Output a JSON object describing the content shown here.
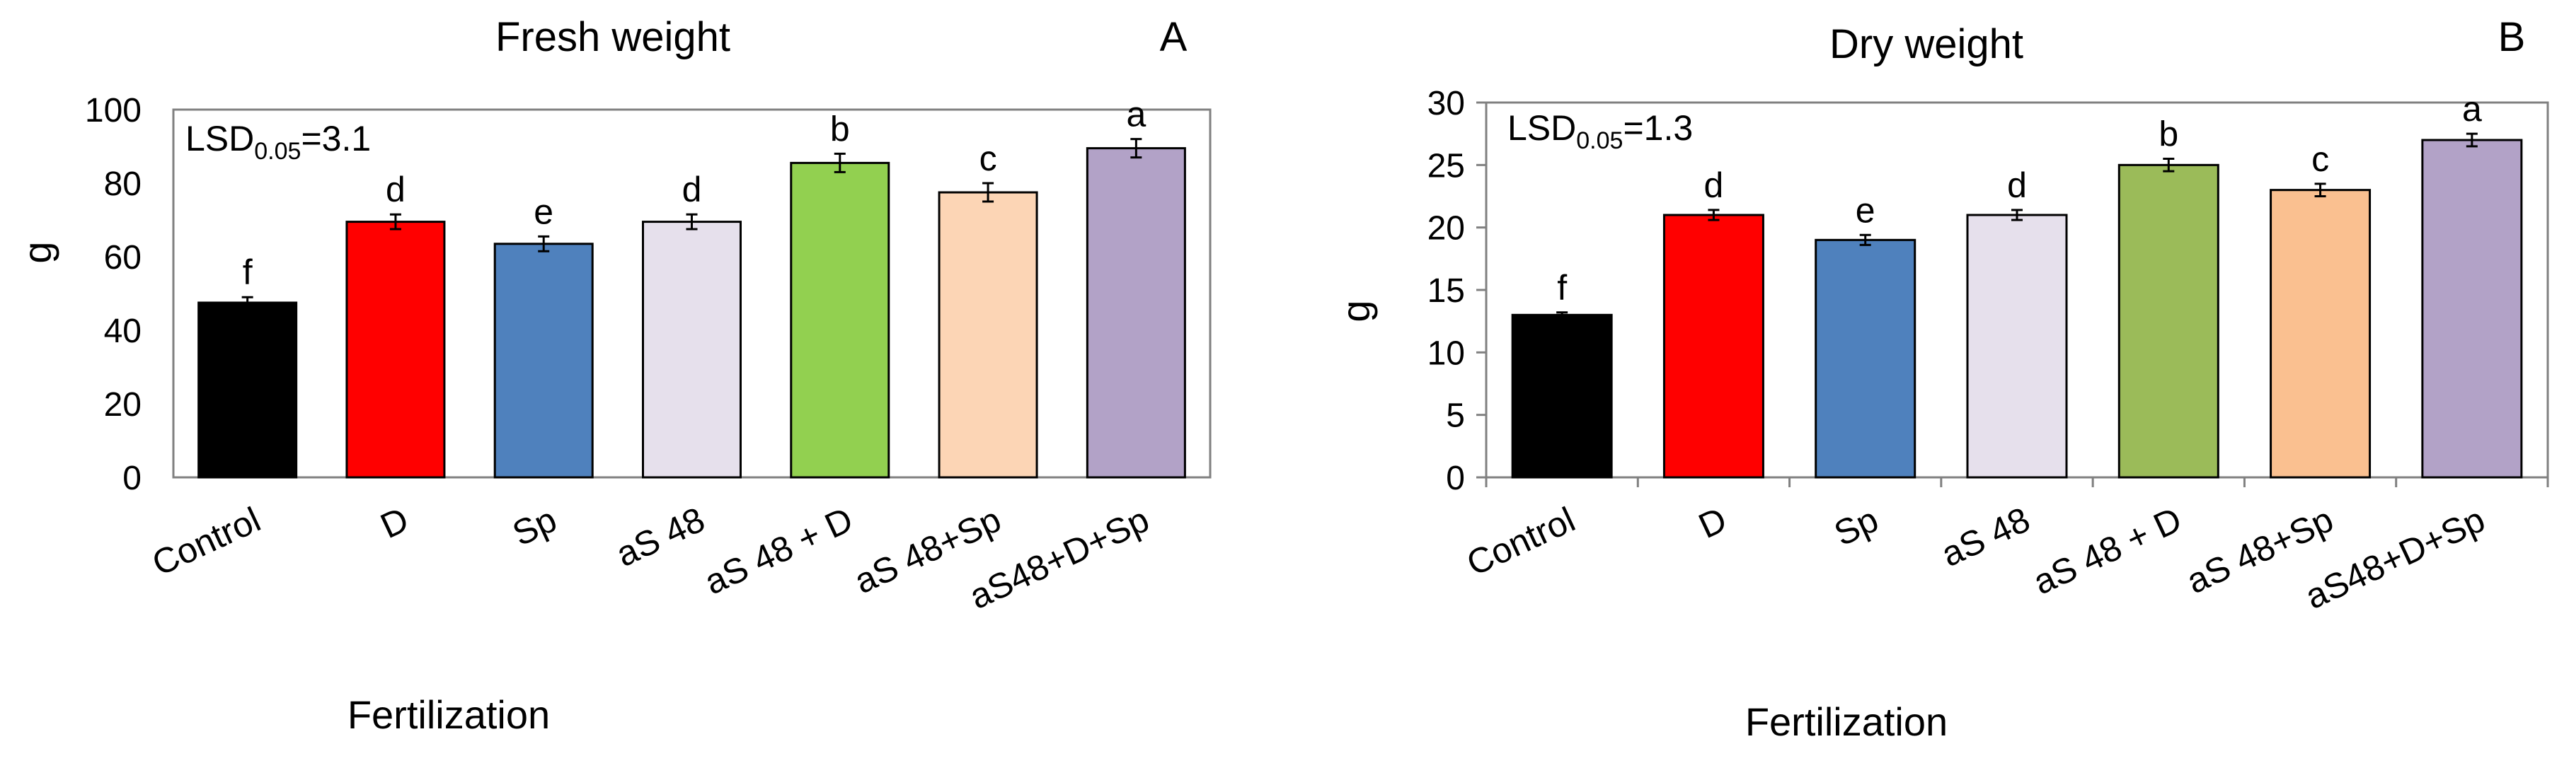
{
  "chart_data": [
    {
      "type": "bar",
      "id": "fresh",
      "title": "Fresh weight",
      "panel_label": "A",
      "lsd": {
        "prefix": "LSD",
        "sub": "0.05",
        "value": "=3.1"
      },
      "xlabel": "Fertilization",
      "ylabel": "g",
      "ylim": [
        0,
        100
      ],
      "yticks": [
        0,
        20,
        40,
        60,
        80,
        100
      ],
      "categories": [
        "Control",
        "D",
        "Sp",
        "aS 48",
        "aS 48 + D",
        "aS 48+Sp",
        "aS48+D+Sp"
      ],
      "values": [
        47.5,
        69.5,
        63.5,
        69.5,
        85.5,
        77.5,
        89.5
      ],
      "errors": [
        1.5,
        2.0,
        2.0,
        2.0,
        2.5,
        2.5,
        2.5
      ],
      "letters": [
        "f",
        "d",
        "e",
        "d",
        "b",
        "c",
        "a"
      ],
      "colors": [
        "#000000",
        "#ff0000",
        "#4f81bd",
        "#e6e0ec",
        "#92d050",
        "#fcd5b5",
        "#b2a2c7"
      ]
    },
    {
      "type": "bar",
      "id": "dry",
      "title": "Dry weight",
      "panel_label": "B",
      "lsd": {
        "prefix": "LSD",
        "sub": "0.05",
        "value": "=1.3"
      },
      "xlabel": "Fertilization",
      "ylabel": "g",
      "ylim": [
        0,
        30
      ],
      "yticks": [
        0,
        5,
        10,
        15,
        20,
        25,
        30
      ],
      "categories": [
        "Control",
        "D",
        "Sp",
        "aS 48",
        "aS 48 + D",
        "aS 48+Sp",
        "aS48+D+Sp"
      ],
      "values": [
        13.0,
        21.0,
        19.0,
        21.0,
        25.0,
        23.0,
        27.0
      ],
      "errors": [
        0.2,
        0.4,
        0.4,
        0.4,
        0.5,
        0.5,
        0.5
      ],
      "letters": [
        "f",
        "d",
        "e",
        "d",
        "b",
        "c",
        "a"
      ],
      "colors": [
        "#000000",
        "#ff0000",
        "#4f81bd",
        "#e6e0ec",
        "#9bbb59",
        "#fac090",
        "#b2a2c7"
      ]
    }
  ]
}
